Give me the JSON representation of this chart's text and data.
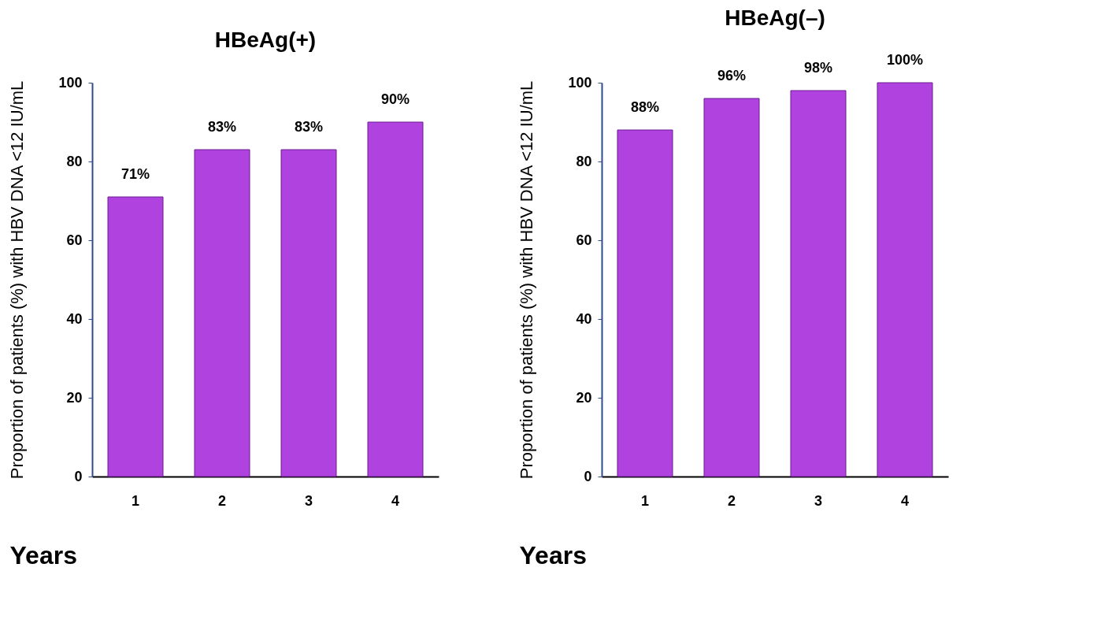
{
  "chart_data": [
    {
      "type": "bar",
      "title": "HBeAg(+)",
      "xlabel": "Years",
      "ylabel": "Proportion of patients (%) with HBV DNA <12 IU/mL",
      "categories": [
        "1",
        "2",
        "3",
        "4"
      ],
      "values": [
        71,
        83,
        83,
        90
      ],
      "value_labels": [
        "71%",
        "83%",
        "83%",
        "90%"
      ],
      "color": "#b043e0",
      "ylim": [
        0,
        100
      ],
      "yticks": [
        0,
        20,
        40,
        60,
        80,
        100
      ],
      "grid": false
    },
    {
      "type": "bar",
      "title": "HBeAg(–)",
      "xlabel": "Years",
      "ylabel": "Proportion of patients (%) with HBV DNA <12 IU/mL",
      "categories": [
        "1",
        "2",
        "3",
        "4"
      ],
      "values": [
        88,
        96,
        98,
        100
      ],
      "value_labels": [
        "88%",
        "96%",
        "98%",
        "100%"
      ],
      "color": "#b043e0",
      "ylim": [
        0,
        100
      ],
      "yticks": [
        0,
        20,
        40,
        60,
        80,
        100
      ],
      "grid": false
    }
  ]
}
